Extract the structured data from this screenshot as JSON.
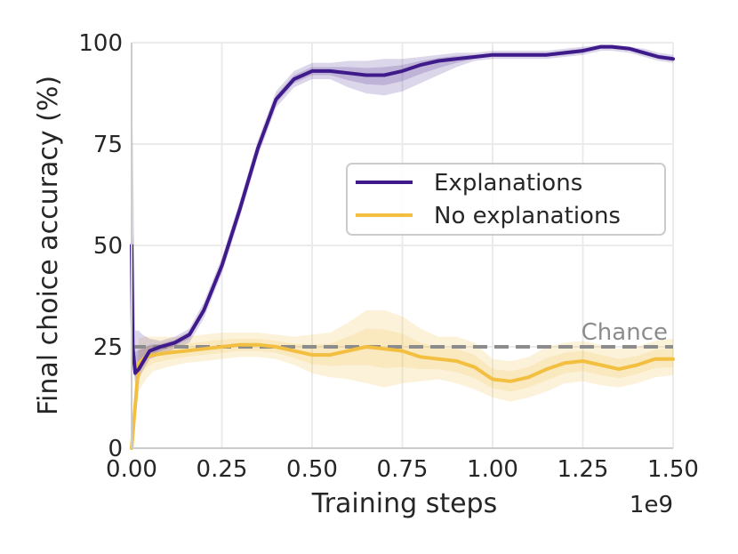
{
  "chart_data": {
    "type": "line",
    "xlabel": "Training steps",
    "ylabel": "Final choice accuracy (%)",
    "x_offset_label": "1e9",
    "xlim": [
      0,
      1.5
    ],
    "ylim": [
      0,
      100
    ],
    "xticks": [
      0,
      0.25,
      0.5,
      0.75,
      1.0,
      1.25,
      1.5
    ],
    "xtick_labels": [
      "0.00",
      "0.25",
      "0.50",
      "0.75",
      "1.00",
      "1.25",
      "1.50"
    ],
    "yticks": [
      0,
      25,
      50,
      75,
      100
    ],
    "ytick_labels": [
      "0",
      "25",
      "50",
      "75",
      "100"
    ],
    "grid": true,
    "legend_position": "center-right",
    "reference_line": {
      "label": "Chance",
      "y": 25,
      "color": "#8c8c8c",
      "style": "dashed"
    },
    "series": [
      {
        "name": "Explanations",
        "color": "#3f1a8a",
        "x": [
          0,
          0.003,
          0.01,
          0.02,
          0.03,
          0.05,
          0.08,
          0.12,
          0.16,
          0.2,
          0.25,
          0.3,
          0.35,
          0.4,
          0.45,
          0.5,
          0.55,
          0.6,
          0.65,
          0.7,
          0.75,
          0.8,
          0.85,
          0.9,
          0.95,
          1.0,
          1.05,
          1.1,
          1.15,
          1.2,
          1.25,
          1.3,
          1.33,
          1.38,
          1.42,
          1.46,
          1.5
        ],
        "y": [
          50,
          25,
          18.5,
          19.5,
          21,
          24,
          25,
          26,
          28,
          34,
          45,
          59,
          74,
          86,
          91,
          93,
          93,
          92.5,
          92,
          92,
          93,
          94.5,
          95.5,
          96,
          96.5,
          97,
          97,
          97,
          97,
          97.5,
          98,
          99,
          99,
          98.5,
          97.5,
          96.5,
          96
        ],
        "lower": [
          50,
          20,
          16,
          17,
          19,
          22,
          23,
          24.5,
          26,
          32,
          43,
          57,
          72,
          84,
          89,
          91,
          91,
          89,
          87.5,
          87,
          88,
          90,
          92,
          94,
          95.5,
          96,
          96,
          96,
          96,
          96.5,
          97,
          98,
          98,
          97.5,
          96.5,
          95.5,
          95
        ],
        "upper": [
          50,
          80,
          29,
          29,
          28,
          27,
          26.5,
          27.5,
          29.5,
          36,
          47,
          61,
          76,
          88,
          93,
          95,
          95,
          95.5,
          95.5,
          96,
          96,
          96.5,
          97,
          97.5,
          97.5,
          98,
          98,
          98,
          98,
          98.5,
          99,
          99.5,
          99.5,
          99,
          98.5,
          97.5,
          97
        ]
      },
      {
        "name": "No explanations",
        "color": "#f2bf41",
        "x": [
          0,
          0.02,
          0.04,
          0.06,
          0.1,
          0.15,
          0.2,
          0.25,
          0.3,
          0.35,
          0.4,
          0.45,
          0.5,
          0.55,
          0.6,
          0.65,
          0.7,
          0.75,
          0.8,
          0.85,
          0.9,
          0.95,
          1.0,
          1.05,
          1.1,
          1.15,
          1.2,
          1.25,
          1.3,
          1.35,
          1.4,
          1.45,
          1.5
        ],
        "y": [
          0,
          21,
          22.5,
          23,
          23.5,
          24,
          24.5,
          25,
          25.5,
          25.5,
          25,
          24,
          23,
          23,
          24,
          25,
          24.5,
          24,
          22.5,
          22,
          21.5,
          20,
          17,
          16.5,
          17.5,
          19.5,
          21,
          21.5,
          20.5,
          19.5,
          20.5,
          22,
          22
        ],
        "lower": [
          0,
          14,
          17,
          19,
          20,
          21,
          21.5,
          22,
          22.5,
          22.5,
          22,
          20.5,
          18.5,
          17.5,
          17,
          16,
          15,
          16,
          16.5,
          17,
          16,
          14.5,
          12.5,
          11.5,
          12.5,
          14,
          16,
          16.5,
          15.5,
          15,
          16,
          17.5,
          18
        ],
        "upper": [
          0,
          27,
          27.5,
          27.5,
          27.5,
          27.5,
          28,
          28.5,
          28.5,
          28.5,
          28,
          27.5,
          28,
          28.5,
          31,
          34,
          34,
          32.5,
          29.5,
          27.5,
          27.5,
          26,
          22,
          21.5,
          22.5,
          25,
          26,
          26.5,
          25.5,
          24.5,
          25,
          26.5,
          27
        ]
      }
    ]
  }
}
